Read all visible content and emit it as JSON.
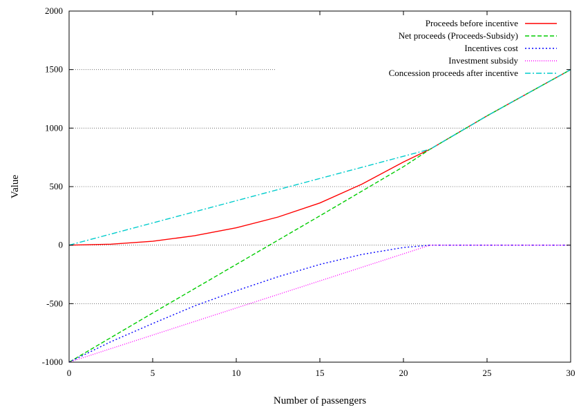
{
  "chart_data": {
    "type": "line",
    "xlabel": "Number of passengers",
    "ylabel": "Value",
    "xlim": [
      0,
      30
    ],
    "ylim": [
      -1000,
      2000
    ],
    "xticks": [
      0,
      5,
      10,
      15,
      20,
      25,
      30
    ],
    "yticks": [
      -1000,
      -500,
      0,
      500,
      1000,
      1500,
      2000
    ],
    "grid": true,
    "legend_position": "top-right",
    "series": [
      {
        "name": "Proceeds before incentive",
        "color": "#ff0000",
        "dash": "solid",
        "x": [
          0,
          2.5,
          5,
          7.5,
          10,
          12.5,
          15,
          17.5,
          20,
          21.6,
          25,
          30
        ],
        "y": [
          0,
          8,
          33,
          80,
          148,
          240,
          360,
          520,
          710,
          820,
          1105,
          1500
        ]
      },
      {
        "name": "Net proceeds (Proceeds-Subsidy)",
        "color": "#00cc00",
        "dash": "dashed",
        "x": [
          0,
          5,
          10,
          15,
          20,
          21.6,
          25,
          30
        ],
        "y": [
          -1000,
          -580,
          -165,
          250,
          670,
          820,
          1105,
          1500
        ]
      },
      {
        "name": "Incentives cost",
        "color": "#0000ff",
        "dash": "dotted",
        "x": [
          0,
          2.5,
          5,
          7.5,
          10,
          12.5,
          15,
          17.5,
          20,
          21.6,
          25,
          30
        ],
        "y": [
          -1000,
          -825,
          -670,
          -520,
          -390,
          -270,
          -165,
          -80,
          -20,
          0,
          0,
          0
        ]
      },
      {
        "name": "Investment subsidy",
        "color": "#ff00ff",
        "dash": "fine-dotted",
        "x": [
          0,
          21.6,
          25,
          30
        ],
        "y": [
          -1000,
          0,
          0,
          0
        ]
      },
      {
        "name": "Concession proceeds after incentive",
        "color": "#00cccc",
        "dash": "dash-dot",
        "x": [
          0,
          21.6,
          25,
          30
        ],
        "y": [
          0,
          820,
          1105,
          1500
        ]
      }
    ]
  }
}
